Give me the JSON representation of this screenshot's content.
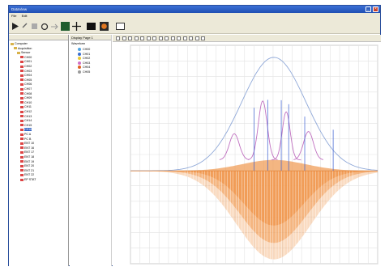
{
  "window": {
    "title": "DataView"
  },
  "menu": [
    "File",
    "Edit"
  ],
  "toolbar": [
    "play-icon",
    "undo-icon",
    "stop-icon",
    "refresh-icon",
    "record-icon",
    "grid-icon",
    "crosshair-icon",
    "display-icon",
    "color-icon",
    "window-icon"
  ],
  "left_pane": {
    "header": ""
  },
  "tree": [
    {
      "label": "Computer",
      "indent": 0,
      "kind": "folder"
    },
    {
      "label": "Acquisition",
      "indent": 1,
      "kind": "folder"
    },
    {
      "label": "Sensor",
      "indent": 2,
      "kind": "folder"
    },
    {
      "label": "CH00",
      "indent": 3,
      "kind": "channel"
    },
    {
      "label": "CH01",
      "indent": 3,
      "kind": "channel"
    },
    {
      "label": "CH02",
      "indent": 3,
      "kind": "channel"
    },
    {
      "label": "CH03",
      "indent": 3,
      "kind": "channel"
    },
    {
      "label": "CH04",
      "indent": 3,
      "kind": "channel"
    },
    {
      "label": "CH05",
      "indent": 3,
      "kind": "channel"
    },
    {
      "label": "CH06",
      "indent": 3,
      "kind": "channel"
    },
    {
      "label": "CH07",
      "indent": 3,
      "kind": "channel"
    },
    {
      "label": "CH08",
      "indent": 3,
      "kind": "channel"
    },
    {
      "label": "CH09",
      "indent": 3,
      "kind": "channel"
    },
    {
      "label": "CH10",
      "indent": 3,
      "kind": "channel"
    },
    {
      "label": "CH11",
      "indent": 3,
      "kind": "channel"
    },
    {
      "label": "CH12",
      "indent": 3,
      "kind": "channel"
    },
    {
      "label": "CH13",
      "indent": 3,
      "kind": "channel"
    },
    {
      "label": "CH14",
      "indent": 3,
      "kind": "channel"
    },
    {
      "label": "CH15",
      "indent": 3,
      "kind": "channel"
    },
    {
      "label": "CH16",
      "indent": 3,
      "kind": "channel",
      "selected": true
    },
    {
      "label": "PC A",
      "indent": 3,
      "kind": "channel"
    },
    {
      "label": "PC B",
      "indent": 3,
      "kind": "channel"
    },
    {
      "label": "ENT 10",
      "indent": 3,
      "kind": "channel"
    },
    {
      "label": "ENT 16",
      "indent": 3,
      "kind": "channel"
    },
    {
      "label": "ENT 17",
      "indent": 3,
      "kind": "channel"
    },
    {
      "label": "ENT 18",
      "indent": 3,
      "kind": "channel"
    },
    {
      "label": "ENT 19",
      "indent": 3,
      "kind": "channel"
    },
    {
      "label": "ENT 20",
      "indent": 3,
      "kind": "channel"
    },
    {
      "label": "ENT 21",
      "indent": 3,
      "kind": "channel"
    },
    {
      "label": "ENT 22",
      "indent": 3,
      "kind": "channel"
    },
    {
      "label": "EP STAT",
      "indent": 3,
      "kind": "channel"
    }
  ],
  "legend": {
    "tab": "Display Page 1",
    "title": "Waveform",
    "items": [
      {
        "label": "CH00",
        "color": "#4fa3e0"
      },
      {
        "label": "CH01",
        "color": "#3a6fd0"
      },
      {
        "label": "CH02",
        "color": "#e8c833"
      },
      {
        "label": "CH03",
        "color": "#d070c8"
      },
      {
        "label": "CH04",
        "color": "#e06020"
      },
      {
        "label": "CH05",
        "color": "#9a9a9a"
      }
    ]
  },
  "chart_toolbar": [
    "cursor-icon",
    "zoom-in-icon",
    "zoom-out-icon",
    "pan-icon",
    "fit-icon",
    "measure-icon",
    "marker-icon",
    "add-icon",
    "copy-icon",
    "print-icon",
    "export-icon",
    "settings-icon",
    "undo-icon",
    "redo-icon",
    "help-icon"
  ],
  "chart_data": {
    "type": "line",
    "title": "",
    "xlabel": "",
    "ylabel": "",
    "x_ticks": [],
    "y_ticks": [],
    "grid": true,
    "series_colors": {
      "fill": "#f0974d",
      "envelope": "#8fa8d8",
      "peaks": "#c070c0",
      "blue": "#3a5fd0"
    },
    "note_series": []
  }
}
